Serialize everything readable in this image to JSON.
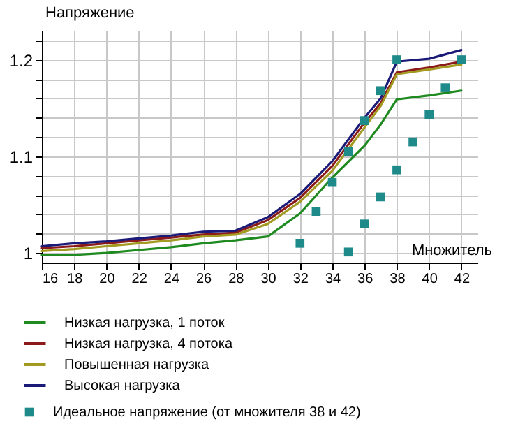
{
  "chart_data": {
    "type": "line",
    "xlabel": "Множитель",
    "ylabel": "Напряжение",
    "x": [
      16,
      18,
      20,
      22,
      24,
      26,
      28,
      30,
      32,
      34,
      36,
      37,
      38,
      40,
      42
    ],
    "series": [
      {
        "name": "Низкая нагрузка, 1 поток",
        "color": "#1f8a1f",
        "values": [
          0.998,
          0.998,
          1.0,
          1.003,
          1.006,
          1.01,
          1.013,
          1.017,
          1.041,
          1.078,
          1.111,
          1.133,
          1.159,
          1.163,
          1.168
        ]
      },
      {
        "name": "Низкая нагрузка, 4 потока",
        "color": "#8b1a1a",
        "values": [
          1.005,
          1.007,
          1.01,
          1.013,
          1.016,
          1.019,
          1.021,
          1.034,
          1.057,
          1.09,
          1.135,
          1.155,
          1.187,
          1.192,
          1.198
        ]
      },
      {
        "name": "Повышенная нагрузка",
        "color": "#a39a22",
        "values": [
          1.002,
          1.004,
          1.007,
          1.01,
          1.013,
          1.017,
          1.019,
          1.03,
          1.053,
          1.085,
          1.13,
          1.152,
          1.185,
          1.19,
          1.195
        ]
      },
      {
        "name": "Высокая нагрузка",
        "color": "#1a1a78",
        "values": [
          1.007,
          1.01,
          1.012,
          1.015,
          1.018,
          1.022,
          1.023,
          1.037,
          1.061,
          1.095,
          1.14,
          1.16,
          1.198,
          1.201,
          1.21
        ]
      },
      {
        "name": "Идеальное напряжение (от множителя 38 и 42)",
        "type": "scatter",
        "marker": "square",
        "color": "#1f8a8a",
        "x": [
          32,
          33,
          34,
          35,
          36,
          37,
          38,
          35,
          36,
          37,
          38,
          39,
          40,
          41,
          42
        ],
        "values": [
          1.01,
          1.043,
          1.073,
          1.105,
          1.137,
          1.168,
          1.2,
          1.001,
          1.03,
          1.058,
          1.086,
          1.115,
          1.143,
          1.171,
          1.2
        ]
      }
    ],
    "xlim": [
      16,
      43
    ],
    "xticks": [
      16,
      18,
      20,
      22,
      24,
      26,
      28,
      30,
      32,
      34,
      36,
      38,
      40,
      42
    ],
    "ylim": [
      0.99,
      1.23
    ],
    "yticks": [
      {
        "value": 1,
        "label": "1"
      },
      {
        "value": 1.02,
        "label": null
      },
      {
        "value": 1.04,
        "label": null
      },
      {
        "value": 1.06,
        "label": null
      },
      {
        "value": 1.08,
        "label": null
      },
      {
        "value": 1.1,
        "label": "1.1"
      },
      {
        "value": 1.12,
        "label": null
      },
      {
        "value": 1.14,
        "label": null
      },
      {
        "value": 1.16,
        "label": null
      },
      {
        "value": 1.18,
        "label": null
      },
      {
        "value": 1.2,
        "label": "1.2"
      },
      {
        "value": 1.22,
        "label": null
      }
    ],
    "grid": true,
    "legend": "bottom",
    "marker": "none",
    "line_style": "solid"
  }
}
